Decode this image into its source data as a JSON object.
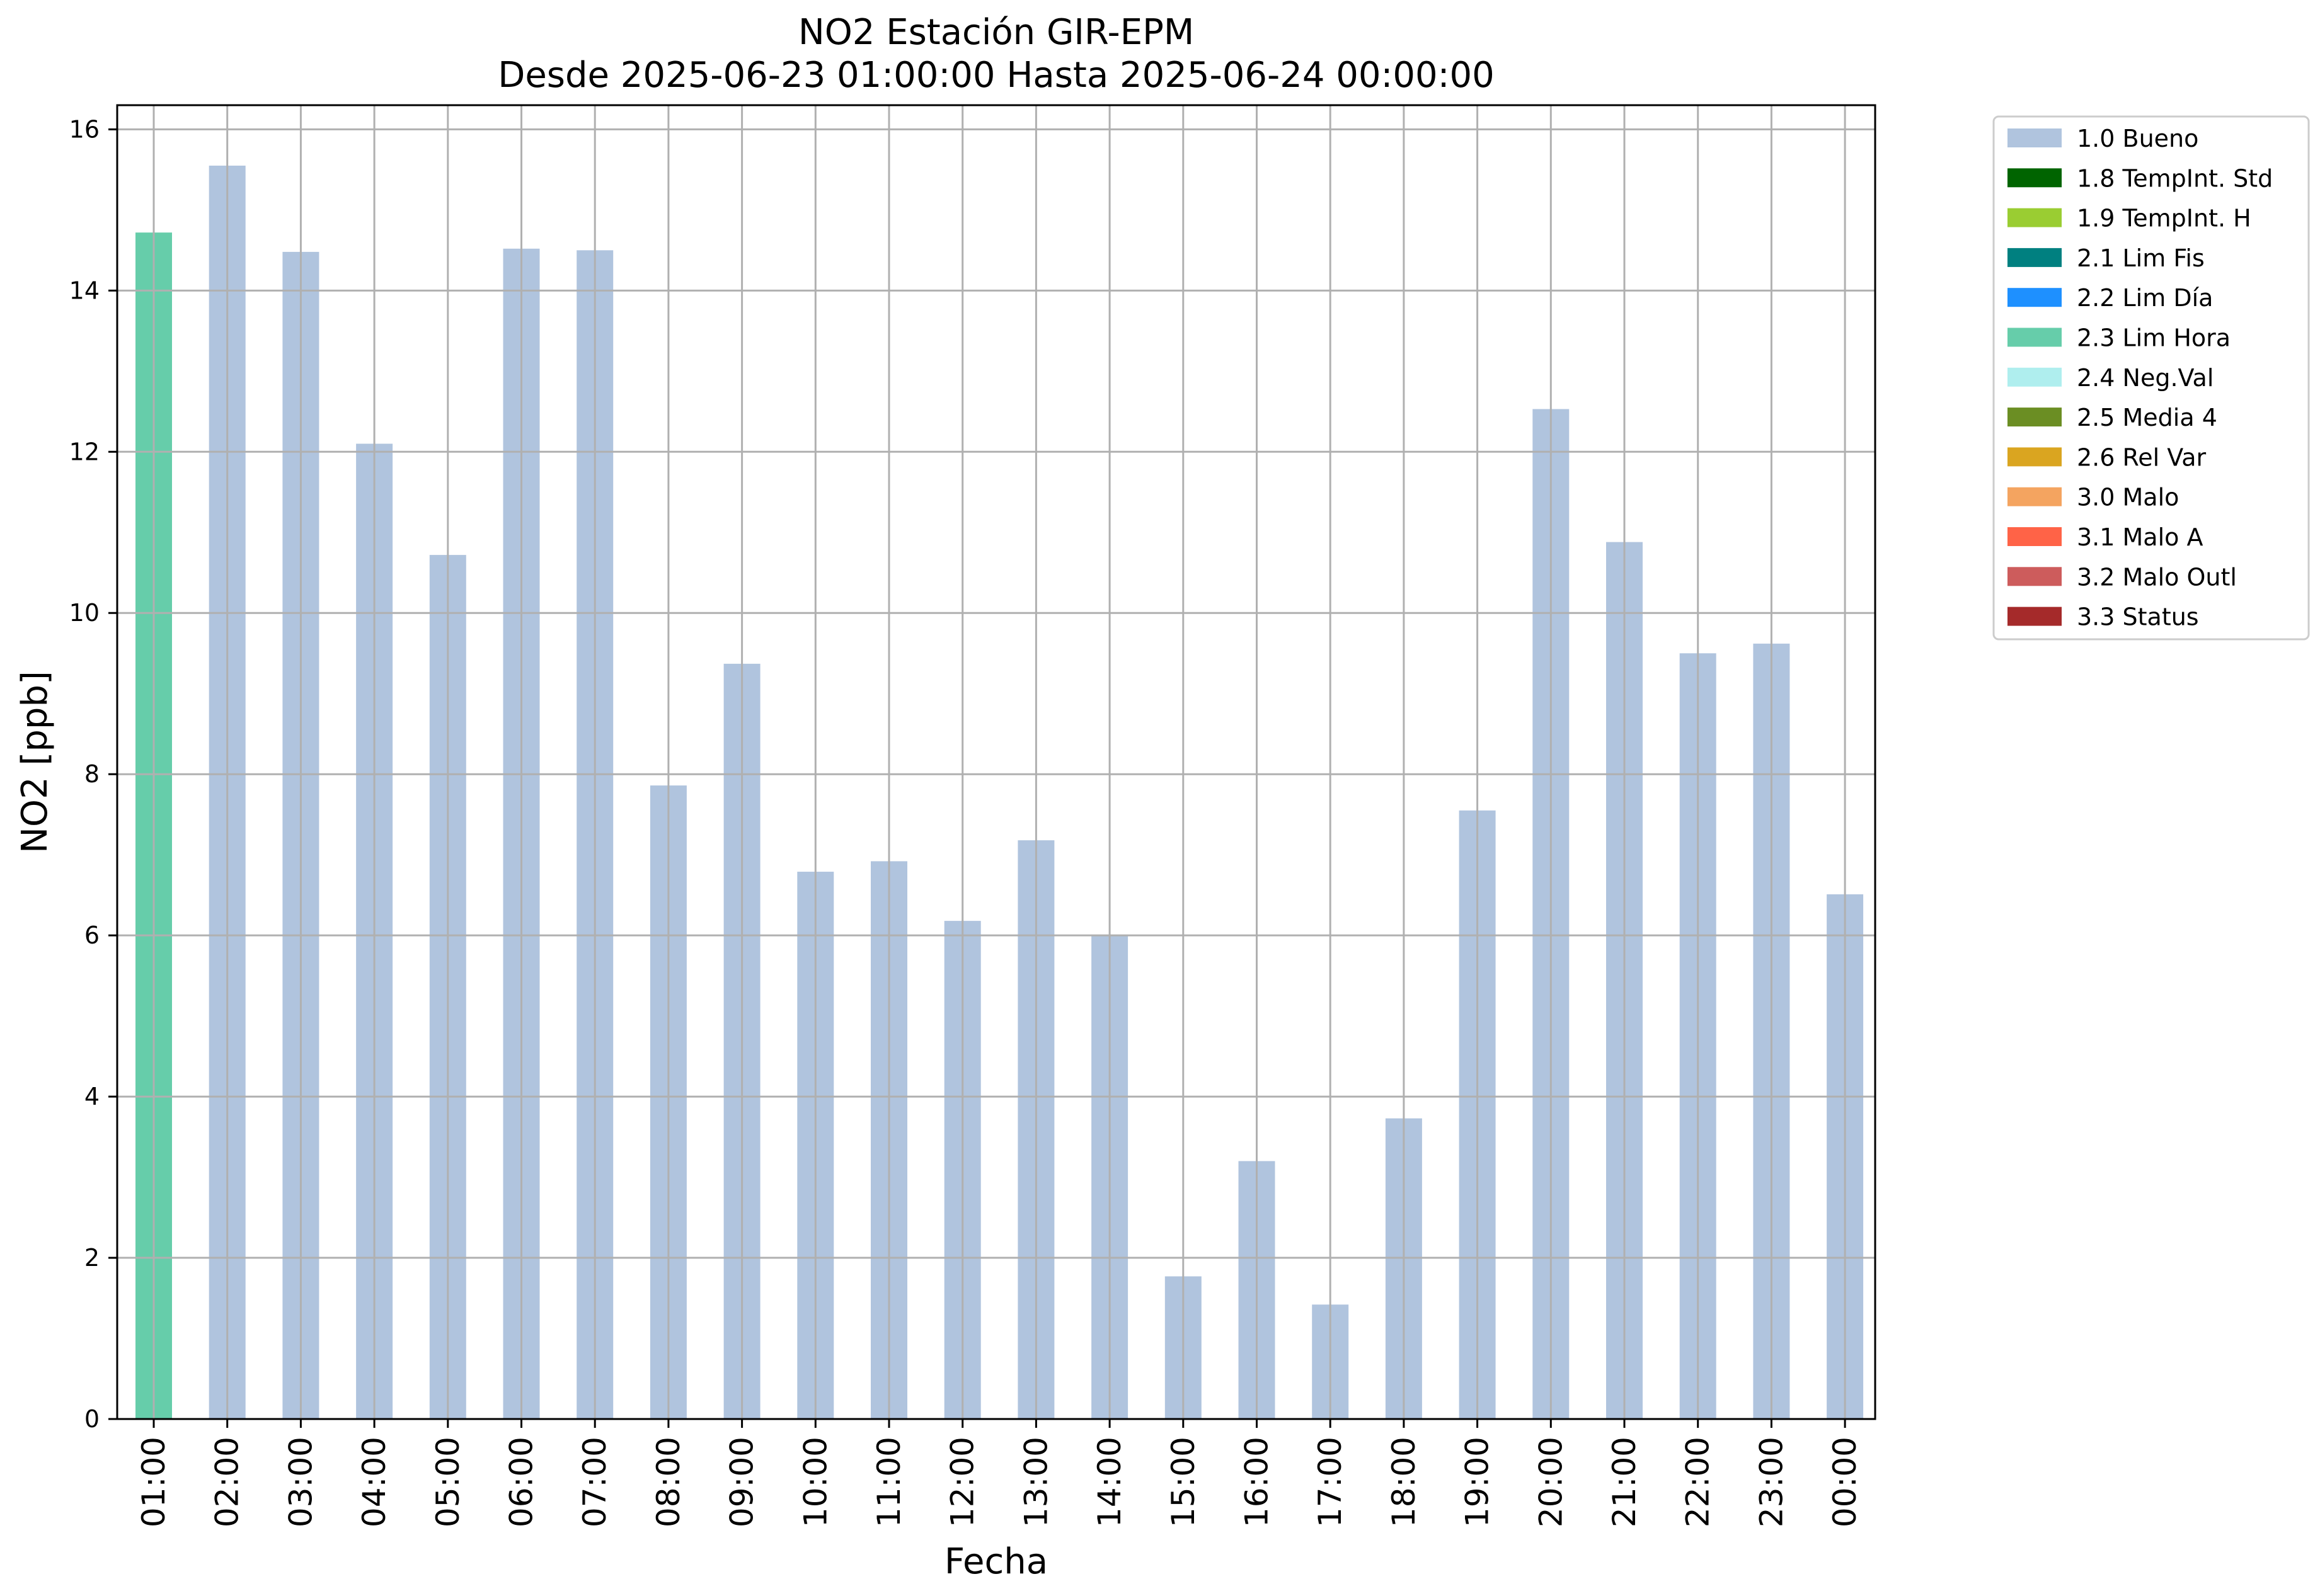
{
  "chart_data": {
    "type": "bar",
    "title": "NO2 Estación GIR-EPM",
    "subtitle": "Desde 2025-06-23 01:00:00 Hasta 2025-06-24 00:00:00",
    "xlabel": "Fecha",
    "ylabel": "NO2 [ppb]",
    "ylim": [
      0,
      16.3
    ],
    "yticks": [
      0,
      2,
      4,
      6,
      8,
      10,
      12,
      14,
      16
    ],
    "grid": true,
    "legend_position": "outside-right",
    "categories": [
      "01:00",
      "02:00",
      "03:00",
      "04:00",
      "05:00",
      "06:00",
      "07:00",
      "08:00",
      "09:00",
      "10:00",
      "11:00",
      "12:00",
      "13:00",
      "14:00",
      "15:00",
      "16:00",
      "17:00",
      "18:00",
      "19:00",
      "20:00",
      "21:00",
      "22:00",
      "23:00",
      "00:00"
    ],
    "values": [
      14.72,
      15.55,
      14.48,
      12.1,
      10.72,
      14.52,
      14.5,
      7.86,
      9.37,
      6.79,
      6.92,
      6.18,
      7.18,
      6.01,
      1.77,
      3.2,
      1.42,
      3.73,
      7.55,
      12.53,
      10.88,
      9.5,
      9.62,
      6.51
    ],
    "flags": [
      "2.3 Lim Hora",
      "1.0 Bueno",
      "1.0 Bueno",
      "1.0 Bueno",
      "1.0 Bueno",
      "1.0 Bueno",
      "1.0 Bueno",
      "1.0 Bueno",
      "1.0 Bueno",
      "1.0 Bueno",
      "1.0 Bueno",
      "1.0 Bueno",
      "1.0 Bueno",
      "1.0 Bueno",
      "1.0 Bueno",
      "1.0 Bueno",
      "1.0 Bueno",
      "1.0 Bueno",
      "1.0 Bueno",
      "1.0 Bueno",
      "1.0 Bueno",
      "1.0 Bueno",
      "1.0 Bueno",
      "1.0 Bueno"
    ],
    "legend": [
      {
        "label": "1.0 Bueno",
        "color": "#b0c4de"
      },
      {
        "label": "1.8 TempInt. Std",
        "color": "#006400"
      },
      {
        "label": "1.9 TempInt. H",
        "color": "#9acd32"
      },
      {
        "label": "2.1 Lim Fis",
        "color": "#008080"
      },
      {
        "label": "2.2 Lim Día",
        "color": "#1e90ff"
      },
      {
        "label": "2.3 Lim Hora",
        "color": "#66cdaa"
      },
      {
        "label": "2.4 Neg.Val",
        "color": "#afeeee"
      },
      {
        "label": "2.5 Media 4",
        "color": "#6b8e23"
      },
      {
        "label": "2.6 Rel Var",
        "color": "#daa520"
      },
      {
        "label": "3.0 Malo",
        "color": "#f4a460"
      },
      {
        "label": "3.1 Malo A",
        "color": "#ff6347"
      },
      {
        "label": "3.2 Malo Outl",
        "color": "#cd5c5c"
      },
      {
        "label": "3.3 Status",
        "color": "#a52a2a"
      }
    ]
  }
}
